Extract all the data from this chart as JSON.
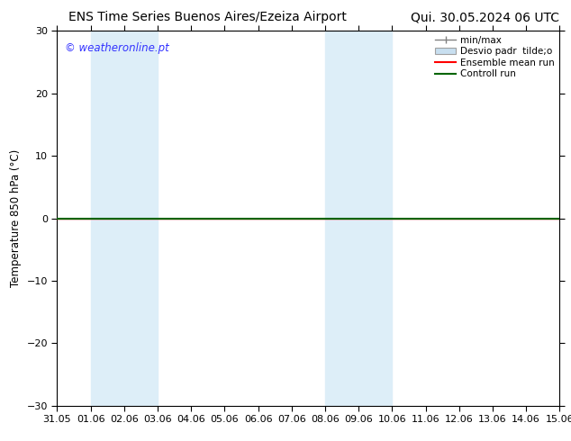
{
  "title_left": "ENS Time Series Buenos Aires/Ezeiza Airport",
  "title_right": "Qui. 30.05.2024 06 UTC",
  "ylabel": "Temperature 850 hPa (°C)",
  "xlabel_ticks": [
    "31.05",
    "01.06",
    "02.06",
    "03.06",
    "04.06",
    "05.06",
    "06.06",
    "07.06",
    "08.06",
    "09.06",
    "10.06",
    "11.06",
    "12.06",
    "13.06",
    "14.06",
    "15.06"
  ],
  "ylim": [
    -30,
    30
  ],
  "yticks": [
    -30,
    -20,
    -10,
    0,
    10,
    20,
    30
  ],
  "xlim": [
    0,
    15
  ],
  "background_color": "#ffffff",
  "plot_bg_color": "#ffffff",
  "watermark": "© weatheronline.pt",
  "watermark_color": "#3333ff",
  "shaded_bands": [
    {
      "x_start": 1.0,
      "x_end": 3.0,
      "color": "#ddeef8"
    },
    {
      "x_start": 8.0,
      "x_end": 10.0,
      "color": "#ddeef8"
    }
  ],
  "line_y": 0.0,
  "ensemble_mean_color": "#ff0000",
  "control_run_color": "#006400",
  "minmax_color": "#808080",
  "desvio_color": "#c8dff0",
  "legend_entries": [
    "min/max",
    "Desvio padr  tilde;o",
    "Ensemble mean run",
    "Controll run"
  ],
  "title_fontsize": 10,
  "axis_label_fontsize": 8.5,
  "tick_fontsize": 8,
  "watermark_fontsize": 8.5,
  "legend_fontsize": 7.5,
  "figwidth": 6.34,
  "figheight": 4.9,
  "dpi": 100
}
